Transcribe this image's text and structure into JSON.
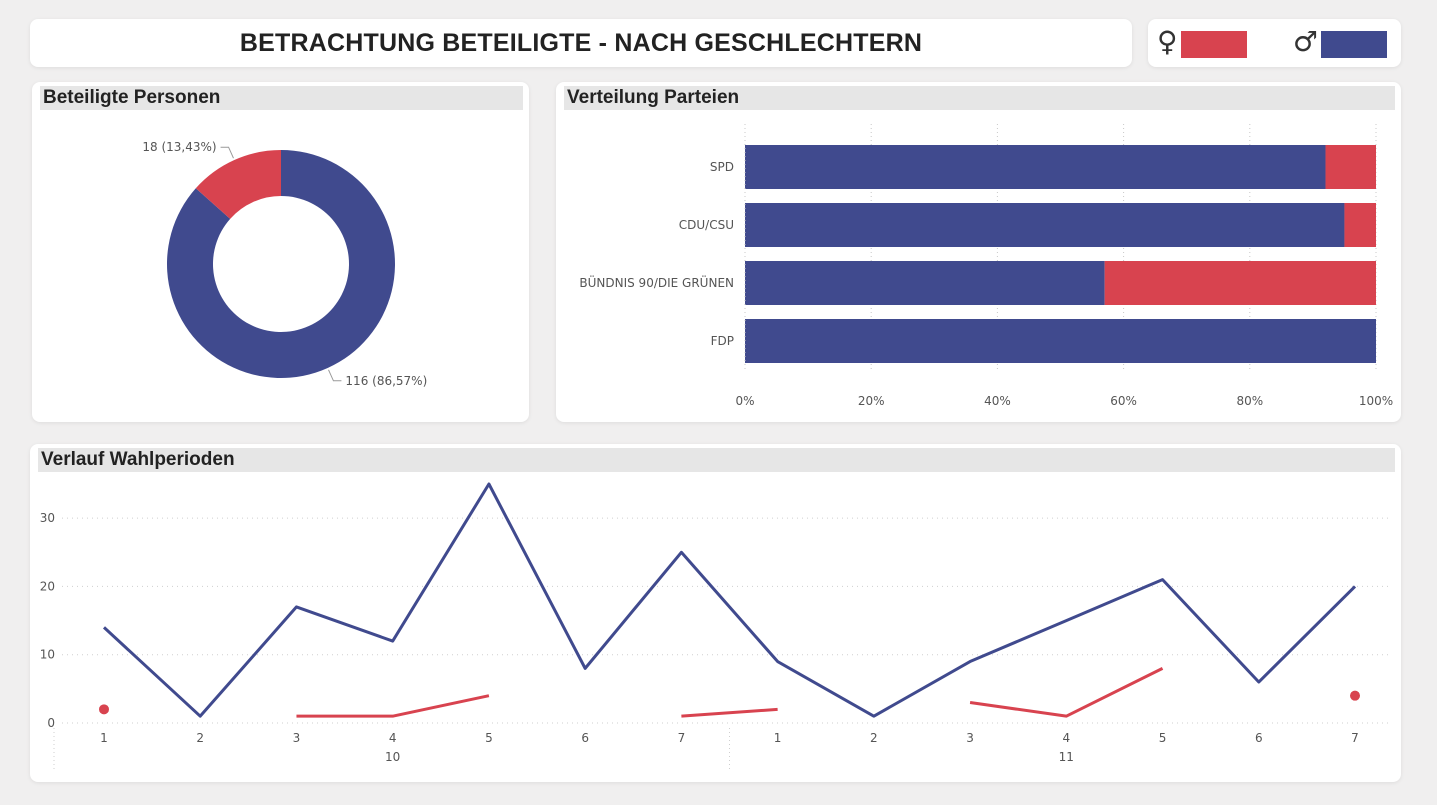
{
  "header": {
    "title": "BETRACHTUNG BETEILIGTE - NACH GESCHLECHTERN"
  },
  "legend": {
    "female": {
      "symbol": "♀",
      "color": "#d8434f"
    },
    "male": {
      "symbol": "♂",
      "color": "#404a8e"
    }
  },
  "colors": {
    "female": "#d8434f",
    "male": "#404a8e"
  },
  "panels": {
    "donut_title": "Beteiligte Personen",
    "bar_title": "Verteilung Parteien",
    "line_title": "Verlauf Wahlperioden"
  },
  "chart_data": [
    {
      "type": "pie",
      "variant": "donut",
      "slices": [
        {
          "key": "male",
          "value": 116,
          "label": "116 (86,57%)"
        },
        {
          "key": "female",
          "value": 18,
          "label": "18 (13,43%)"
        }
      ]
    },
    {
      "type": "bar",
      "orientation": "horizontal",
      "stacked": "percent",
      "categories": [
        "SPD",
        "CDU/CSU",
        "BÜNDNIS 90/DIE GRÜNEN",
        "FDP"
      ],
      "series": [
        {
          "key": "male",
          "values": [
            92,
            95,
            57,
            100
          ]
        },
        {
          "key": "female",
          "values": [
            8,
            5,
            43,
            0
          ]
        }
      ],
      "xlim": [
        0,
        100
      ],
      "xticks": [
        "0%",
        "20%",
        "40%",
        "60%",
        "80%",
        "100%"
      ],
      "grid": true
    },
    {
      "type": "line",
      "x": [
        "1",
        "2",
        "3",
        "4",
        "5",
        "6",
        "7",
        "1",
        "2",
        "3",
        "4",
        "5",
        "6",
        "7"
      ],
      "groups": [
        {
          "label": "10",
          "from": 0,
          "to": 6
        },
        {
          "label": "11",
          "from": 7,
          "to": 13
        }
      ],
      "series": [
        {
          "key": "male",
          "values": [
            14,
            1,
            17,
            12,
            35,
            8,
            25,
            9,
            1,
            9,
            15,
            21,
            6,
            20
          ]
        },
        {
          "key": "female",
          "values": [
            2,
            null,
            1,
            1,
            4,
            null,
            1,
            2,
            null,
            3,
            1,
            8,
            null,
            4
          ]
        }
      ],
      "ylim": [
        0,
        35
      ],
      "yticks": [
        0,
        10,
        20,
        30
      ],
      "grid": true
    }
  ]
}
